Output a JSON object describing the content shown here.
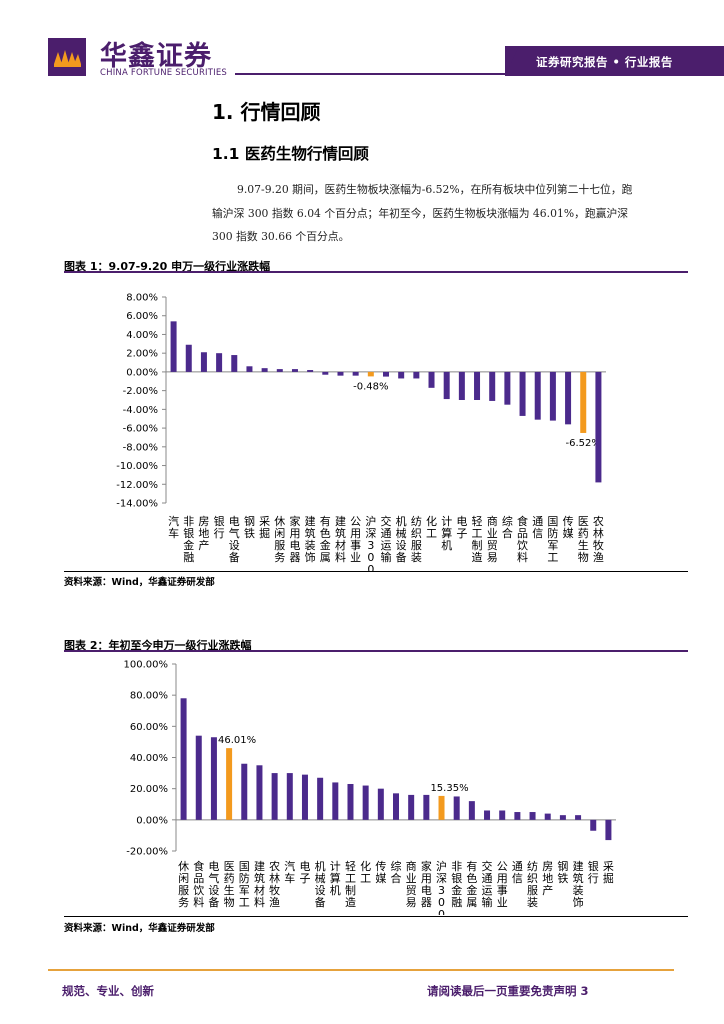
{
  "header": {
    "logo_cn": "华鑫证券",
    "logo_en": "CHINA FORTUNE SECURITIES",
    "report_type": "证券研究报告 • 行业报告"
  },
  "section": {
    "h1": "1. 行情回顾",
    "h2": "1.1 医药生物行情回顾",
    "para_lines": [
      "9.07-9.20 期间，医药生物板块涨幅为-6.52%，在所有板块中位列第二十七位，跑",
      "输沪深 300 指数 6.04 个百分点；年初至今，医药生物板块涨幅为 46.01%，跑赢沪深",
      "300 指数 30.66 个百分点。"
    ]
  },
  "fig1": {
    "title": "图表 1：9.07-9.20 申万一级行业涨跌幅",
    "source": "资料来源：Wind，华鑫证券研发部"
  },
  "fig2": {
    "title": "图表 2：年初至今申万一级行业涨跌幅",
    "source": "资料来源：Wind，华鑫证券研发部"
  },
  "footer": {
    "left": "规范、专业、创新",
    "right": "请阅读最后一页重要免责声明 3"
  },
  "chart_data": [
    {
      "type": "bar",
      "title": "",
      "categories": [
        "汽车",
        "非银金融",
        "房地产",
        "银行",
        "电气设备",
        "钢铁",
        "采掘",
        "休闲服务",
        "家用电器",
        "建筑装饰",
        "有色金属",
        "建筑材料",
        "公用事业",
        "沪深300",
        "交通运输",
        "机械设备",
        "纺织服装",
        "化工",
        "计算机",
        "电子",
        "轻工制造",
        "商业贸易",
        "综合",
        "食品饮料",
        "通信",
        "国防军工",
        "传媒",
        "医药生物",
        "农林牧渔"
      ],
      "values": [
        5.4,
        2.9,
        2.1,
        2.0,
        1.8,
        0.6,
        0.4,
        0.3,
        0.3,
        0.2,
        -0.3,
        -0.4,
        -0.4,
        -0.48,
        -0.5,
        -0.7,
        -0.7,
        -1.7,
        -2.9,
        -3.0,
        -3.0,
        -3.1,
        -3.5,
        -4.7,
        -5.1,
        -5.2,
        -5.6,
        -6.52,
        -11.8
      ],
      "highlight": [
        "沪深300",
        "医药生物"
      ],
      "data_labels": {
        "沪深300": "-0.48%",
        "医药生物": "-6.52%"
      },
      "ylim": [
        -14,
        8
      ],
      "yticks": [
        "8.00%",
        "6.00%",
        "4.00%",
        "2.00%",
        "0.00%",
        "-2.00%",
        "-4.00%",
        "-6.00%",
        "-8.00%",
        "-10.00%",
        "-12.00%",
        "-14.00%"
      ],
      "colors": {
        "bar": "#4b2a8c",
        "highlight": "#f39a1e"
      }
    },
    {
      "type": "bar",
      "title": "",
      "categories": [
        "休闲服务",
        "食品饮料",
        "电气设备",
        "医药生物",
        "国防军工",
        "建筑材料",
        "农林牧渔",
        "汽车",
        "电子",
        "机械设备",
        "计算机",
        "轻工制造",
        "化工",
        "传媒",
        "综合",
        "商业贸易",
        "家用电器",
        "沪深300",
        "非银金融",
        "有色金属",
        "交通运输",
        "公用事业",
        "通信",
        "纺织服装",
        "房地产",
        "钢铁",
        "建筑装饰",
        "银行",
        "采掘"
      ],
      "values": [
        78,
        54,
        53,
        46.01,
        36,
        35,
        30,
        30,
        29,
        27,
        24,
        23,
        22,
        20,
        17,
        16,
        16,
        15.35,
        15,
        12,
        6,
        6,
        5,
        5,
        4,
        3,
        3,
        -7,
        -13
      ],
      "highlight": [
        "医药生物",
        "沪深300"
      ],
      "data_labels": {
        "医药生物": "46.01%",
        "沪深300": "15.35%"
      },
      "ylim": [
        -20,
        100
      ],
      "yticks": [
        "100.00%",
        "80.00%",
        "60.00%",
        "40.00%",
        "20.00%",
        "0.00%",
        "-20.00%"
      ],
      "colors": {
        "bar": "#4b2a8c",
        "highlight": "#f39a1e"
      }
    }
  ]
}
